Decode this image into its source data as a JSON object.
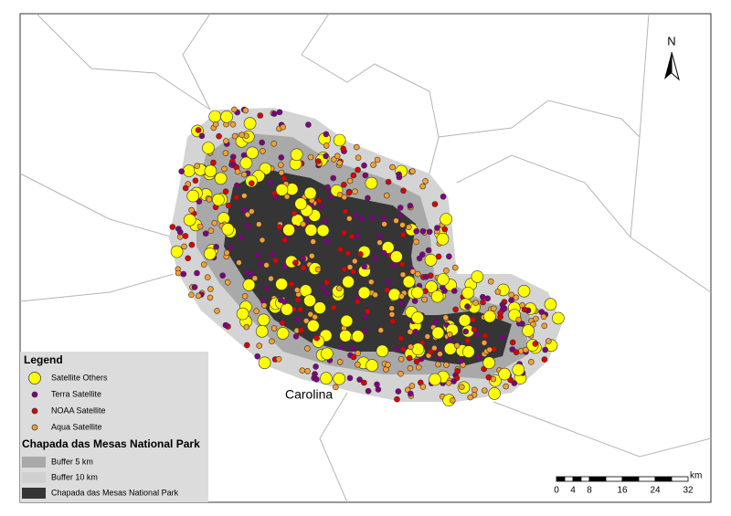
{
  "north": "N",
  "place_label": "Carolina",
  "legend": {
    "title": "Legend",
    "items": [
      "Satellite Others",
      "Terra Satellite",
      "NOAA Satellite",
      "Aqua Satellite"
    ],
    "park_title": "Chapada das Mesas National Park",
    "park_items": [
      "Buffer 5 km",
      "Buffer 10 km",
      "Chapada das Mesas National Park"
    ]
  },
  "scale_bar": {
    "unit": "km",
    "ticks": [
      0,
      4,
      8,
      16,
      24,
      32
    ]
  }
}
